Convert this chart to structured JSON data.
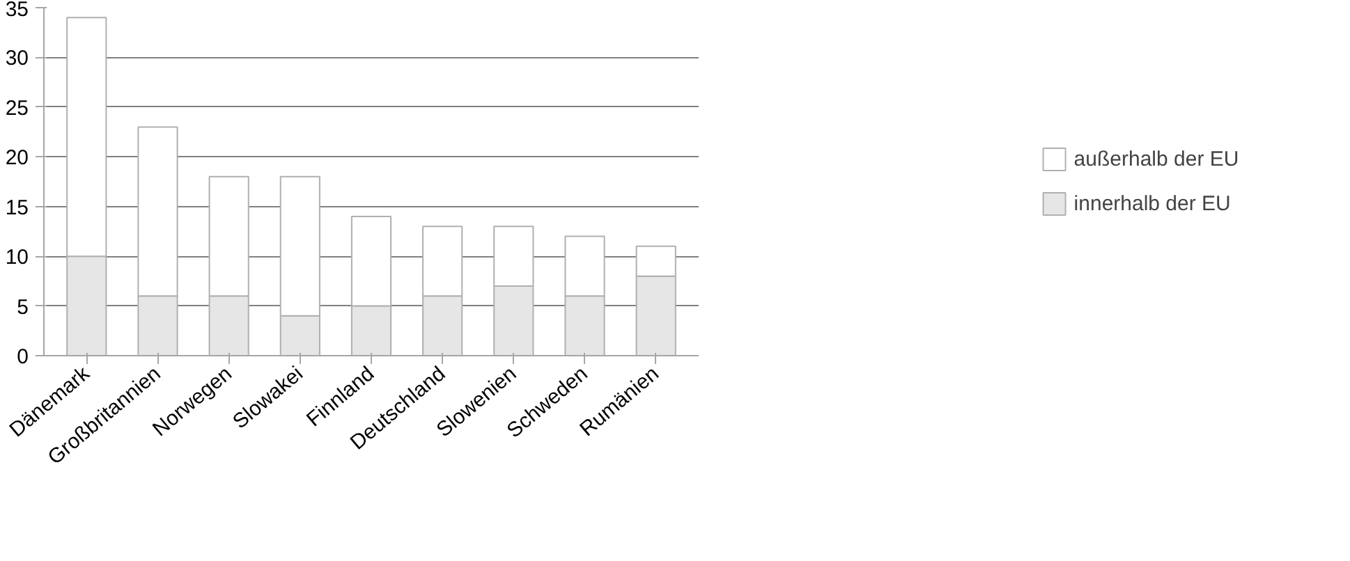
{
  "chart_data": {
    "type": "bar",
    "stacked": true,
    "categories": [
      "Dänemark",
      "Großbritannien",
      "Norwegen",
      "Slowakei",
      "Finnland",
      "Deutschland",
      "Slowenien",
      "Schweden",
      "Rumänien"
    ],
    "series": [
      {
        "name": "innerhalb der EU",
        "color": "#e6e6e6",
        "values": [
          10,
          6,
          6,
          4,
          5,
          6,
          7,
          6,
          8
        ]
      },
      {
        "name": "außerhalb der EU",
        "color": "#ffffff",
        "values": [
          24,
          17,
          12,
          14,
          9,
          7,
          6,
          6,
          3
        ]
      }
    ],
    "ylim": [
      0,
      35
    ],
    "yticks": [
      0,
      5,
      10,
      15,
      20,
      25,
      30,
      35
    ],
    "grid": "y",
    "legend": "right"
  }
}
